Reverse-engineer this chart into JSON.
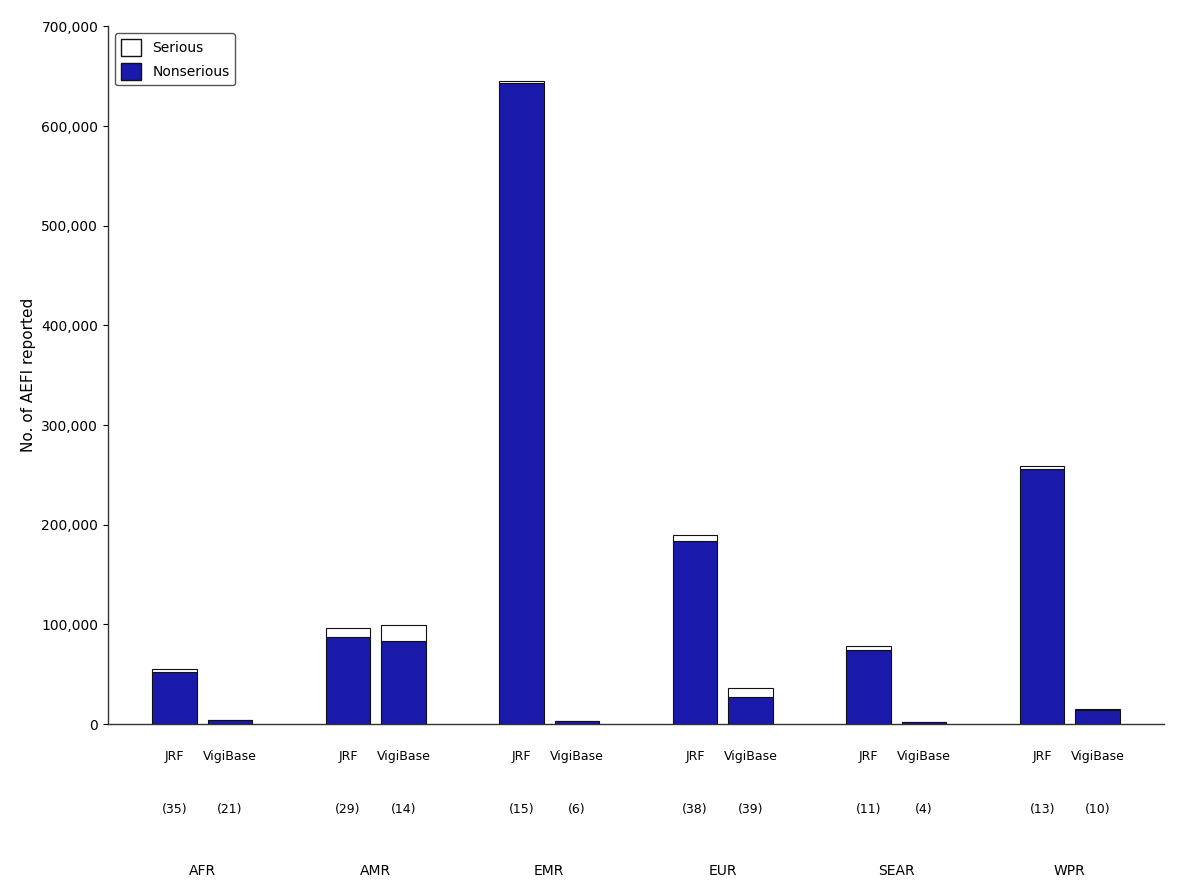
{
  "regions": [
    "AFR",
    "AMR",
    "EMR",
    "EUR",
    "SEAR",
    "WPR"
  ],
  "bar_labels_top": [
    "JRF",
    "VigiBase",
    "JRF",
    "VigiBase",
    "JRF",
    "VigiBase",
    "JRF",
    "VigiBase",
    "JRF",
    "VigiBase",
    "JRF",
    "VigiBase"
  ],
  "bar_labels_count": [
    "(35)",
    "(21)",
    "(29)",
    "(14)",
    "(15)",
    "(6)",
    "(38)",
    "(39)",
    "(11)",
    "(4)",
    "(13)",
    "(10)"
  ],
  "region_names": [
    "AFR",
    "AMR",
    "EMR",
    "EUR",
    "SEAR",
    "WPR"
  ],
  "bars": [
    {
      "nonserious": 52000,
      "serious": 3000
    },
    {
      "nonserious": 4000,
      "serious": 500
    },
    {
      "nonserious": 87000,
      "serious": 9000
    },
    {
      "nonserious": 83000,
      "serious": 16000
    },
    {
      "nonserious": 643000,
      "serious": 2000
    },
    {
      "nonserious": 3000,
      "serious": 500
    },
    {
      "nonserious": 184000,
      "serious": 6000
    },
    {
      "nonserious": 27000,
      "serious": 9000
    },
    {
      "nonserious": 74000,
      "serious": 4000
    },
    {
      "nonserious": 2000,
      "serious": 300
    },
    {
      "nonserious": 256000,
      "serious": 3000
    },
    {
      "nonserious": 14000,
      "serious": 1500
    }
  ],
  "nonserious_color": "#1a1aaa",
  "serious_color": "#ffffff",
  "bar_edgecolor": "#111111",
  "ylabel": "No. of AEFI reported",
  "ylim": [
    0,
    700000
  ],
  "yticks": [
    0,
    100000,
    200000,
    300000,
    400000,
    500000,
    600000,
    700000
  ],
  "ytick_labels": [
    "0",
    "100,000",
    "200,000",
    "300,000",
    "400,000",
    "500,000",
    "600,000",
    "700,000"
  ],
  "legend_serious_label": "Serious",
  "legend_nonserious_label": "Nonserious",
  "background_color": "#ffffff",
  "axis_fontsize": 11,
  "tick_fontsize": 10,
  "label_fontsize": 9,
  "region_fontsize": 10,
  "legend_fontsize": 10
}
